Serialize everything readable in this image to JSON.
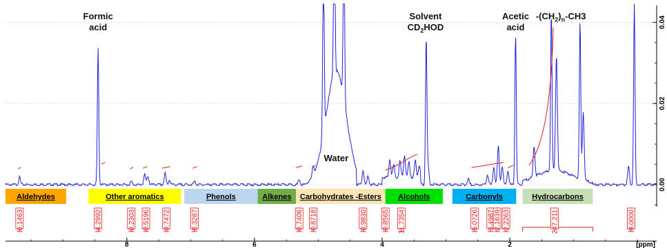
{
  "chart_data": {
    "type": "line",
    "title": "",
    "xlabel": "[ppm]",
    "ylabel": "",
    "x_reversed": true,
    "xlim": [
      9.9,
      -0.3
    ],
    "ylim": [
      -0.012,
      0.045
    ],
    "x_ticks": [
      "8",
      "6",
      "4",
      "2"
    ],
    "x_tick_values": [
      8,
      6,
      4,
      2
    ],
    "y_ticks": [
      "0.00",
      "0.02",
      "0.04"
    ],
    "y_tick_values": [
      0.0,
      0.02,
      0.04
    ],
    "series": [
      {
        "spectrum_color": "#1f1fd8",
        "peaks": [
          {
            "ppm": 9.68,
            "height": 0.0018
          },
          {
            "ppm": 8.45,
            "height": 0.0335
          },
          {
            "ppm": 7.93,
            "height": 0.0008
          },
          {
            "ppm": 7.72,
            "height": 0.0025
          },
          {
            "ppm": 7.67,
            "height": 0.0022
          },
          {
            "ppm": 7.4,
            "height": 0.0028
          },
          {
            "ppm": 7.33,
            "height": 0.0012
          },
          {
            "ppm": 6.94,
            "height": 0.0007
          },
          {
            "ppm": 5.3,
            "height": 0.0012
          },
          {
            "ppm": 5.08,
            "height": 0.0025
          },
          {
            "ppm": 4.92,
            "height": 0.045
          },
          {
            "ppm": 4.75,
            "height": 0.045
          },
          {
            "ppm": 4.6,
            "height": 0.045
          },
          {
            "ppm": 4.3,
            "height": 0.0035
          },
          {
            "ppm": 4.22,
            "height": 0.0022
          },
          {
            "ppm": 3.88,
            "height": 0.0045
          },
          {
            "ppm": 3.82,
            "height": 0.0032
          },
          {
            "ppm": 3.72,
            "height": 0.004
          },
          {
            "ppm": 3.65,
            "height": 0.0055
          },
          {
            "ppm": 3.58,
            "height": 0.0038
          },
          {
            "ppm": 3.48,
            "height": 0.0042
          },
          {
            "ppm": 3.42,
            "height": 0.003
          },
          {
            "ppm": 3.31,
            "height": 0.0365
          },
          {
            "ppm": 3.28,
            "height": 0.0045
          },
          {
            "ppm": 2.65,
            "height": 0.0015
          },
          {
            "ppm": 2.35,
            "height": 0.0025
          },
          {
            "ppm": 2.25,
            "height": 0.0045
          },
          {
            "ppm": 2.18,
            "height": 0.0095
          },
          {
            "ppm": 2.12,
            "height": 0.0045
          },
          {
            "ppm": 2.03,
            "height": 0.0035
          },
          {
            "ppm": 1.91,
            "height": 0.0372
          },
          {
            "ppm": 1.62,
            "height": 0.0075
          },
          {
            "ppm": 1.35,
            "height": 0.039
          },
          {
            "ppm": 1.27,
            "height": 0.0285
          },
          {
            "ppm": 0.9,
            "height": 0.039
          },
          {
            "ppm": 0.85,
            "height": 0.017
          },
          {
            "ppm": 0.14,
            "height": 0.0045
          },
          {
            "ppm": 0.05,
            "height": 0.045
          }
        ]
      }
    ],
    "peak_labels": [
      {
        "lines": [
          "Formic",
          "acid"
        ],
        "ppm": 8.45
      },
      {
        "lines": [
          "Water"
        ],
        "ppm": 4.72
      },
      {
        "lines": [
          "Solvent",
          "CD2HOD"
        ],
        "ppm": 3.32
      },
      {
        "lines": [
          "Acetic",
          "acid"
        ],
        "ppm": 1.91
      },
      {
        "lines": [
          "-(CH2)n-CH3"
        ],
        "ppm": 1.2
      }
    ],
    "regions": [
      {
        "label": "Aldehydes",
        "from": 9.9,
        "to": 8.95,
        "color": "#ffa500"
      },
      {
        "label": "Other aromatics",
        "from": 8.6,
        "to": 7.15,
        "color": "#ffff00"
      },
      {
        "label": "Phenols",
        "from": 7.1,
        "to": 5.95,
        "color": "#bcd6ee"
      },
      {
        "label": "Alkenes",
        "from": 5.95,
        "to": 5.35,
        "color": "#70ad47"
      },
      {
        "label": "Carbohydrates -Esters",
        "from": 5.35,
        "to": 3.95,
        "color": "#fde4b5"
      },
      {
        "label": "Alcohols",
        "from": 3.95,
        "to": 3.05,
        "color": "#00e000"
      },
      {
        "label": "Carbonyls",
        "from": 2.9,
        "to": 1.9,
        "color": "#00b0f0"
      },
      {
        "label": "Hydrocarbons",
        "from": 1.8,
        "to": 0.7,
        "color": "#c4e0b4"
      }
    ],
    "integrals": [
      {
        "value": "0.1463",
        "ppm": 9.68
      },
      {
        "value": "4.2992",
        "ppm": 8.45
      },
      {
        "value": "0.2303",
        "ppm": 7.93
      },
      {
        "value": "0.5196",
        "ppm": 7.7
      },
      {
        "value": "0.7472",
        "ppm": 7.38
      },
      {
        "value": "0.3287",
        "ppm": 6.94
      },
      {
        "value": "0.7406",
        "ppm": 5.3
      },
      {
        "value": "0.8718",
        "ppm": 5.08
      },
      {
        "value": "0.9830",
        "ppm": 4.3
      },
      {
        "value": "0.8565",
        "ppm": 3.95
      },
      {
        "value": "11.7354",
        "ppm": 3.7
      },
      {
        "value": "5.0726",
        "ppm": 2.55
      },
      {
        "value": "3.4987",
        "ppm": 2.3
      },
      {
        "value": "2.1639",
        "ppm": 2.2
      },
      {
        "value": "2.2263",
        "ppm": 2.06
      },
      {
        "value": "247.211",
        "ppm": 1.3
      },
      {
        "value": "9.0000",
        "ppm": 0.1
      }
    ],
    "colors": {
      "spectrum": "#1f1fd8",
      "integral": "#e41a1c",
      "annotation_text": "#111111"
    }
  }
}
